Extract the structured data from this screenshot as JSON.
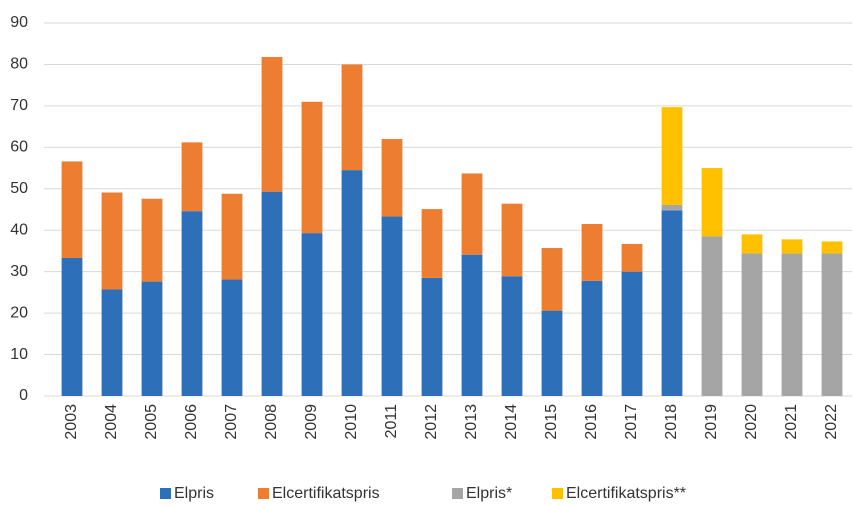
{
  "chart_data": {
    "type": "stacked_bar",
    "categories": [
      "2003",
      "2004",
      "2005",
      "2006",
      "2007",
      "2008",
      "2009",
      "2010",
      "2011",
      "2012",
      "2013",
      "2014",
      "2015",
      "2016",
      "2017",
      "2018",
      "2019",
      "2020",
      "2021",
      "2022"
    ],
    "series": [
      {
        "name": "Elpris",
        "color": "#2e6fba",
        "values": [
          33.3,
          25.7,
          27.6,
          44.6,
          28.1,
          49.3,
          39.3,
          54.5,
          43.3,
          28.5,
          34.1,
          28.9,
          20.6,
          27.8,
          30.0,
          44.8,
          null,
          null,
          null,
          null
        ]
      },
      {
        "name": "Elcertifikatspris",
        "color": "#ed7d31",
        "values": [
          23.3,
          23.4,
          20.0,
          16.6,
          20.7,
          32.5,
          31.7,
          25.5,
          18.7,
          16.6,
          19.6,
          17.5,
          15.1,
          13.7,
          6.7,
          null,
          null,
          null,
          null,
          null
        ]
      },
      {
        "name": "Elpris*",
        "color": "#a5a5a5",
        "values": [
          null,
          null,
          null,
          null,
          null,
          null,
          null,
          null,
          null,
          null,
          null,
          null,
          null,
          null,
          null,
          1.3,
          38.5,
          34.4,
          34.4,
          34.4
        ]
      },
      {
        "name": "Elcertifikatspris**",
        "color": "#ffc000",
        "values": [
          null,
          null,
          null,
          null,
          null,
          null,
          null,
          null,
          null,
          null,
          null,
          null,
          null,
          null,
          null,
          23.6,
          16.5,
          4.6,
          3.4,
          2.9
        ]
      }
    ],
    "ylim": [
      0,
      90
    ],
    "yticks": [
      0,
      10,
      20,
      30,
      40,
      50,
      60,
      70,
      80,
      90
    ],
    "grid": true,
    "legend": "bottom"
  }
}
